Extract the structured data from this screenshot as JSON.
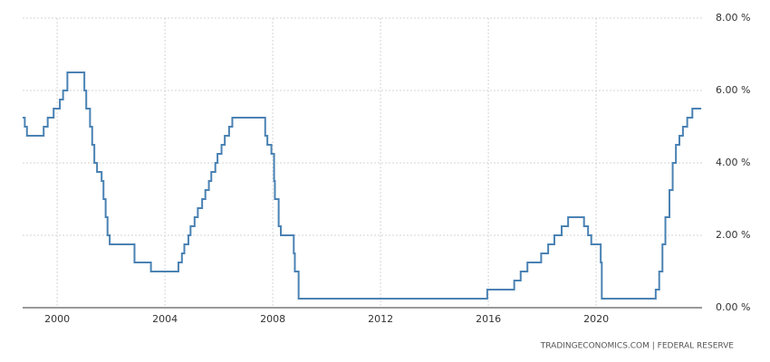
{
  "chart_data": {
    "type": "line",
    "step": true,
    "grid": true,
    "color": "#4a82b3",
    "source": "TRADINGECONOMICS.COM | FEDERAL RESERVE",
    "xlim": [
      1998.72,
      2023.93
    ],
    "xticks": [
      2000,
      2004,
      2008,
      2012,
      2016,
      2020
    ],
    "ylim": [
      0,
      8
    ],
    "yticks": [
      {
        "value": 0,
        "label": "0.00 %"
      },
      {
        "value": 2,
        "label": "2.00 %"
      },
      {
        "value": 4,
        "label": "4.00 %"
      },
      {
        "value": 6,
        "label": "6.00 %"
      },
      {
        "value": 8,
        "label": "8.00 %"
      }
    ],
    "x": [
      1998.72,
      1998.8,
      1998.88,
      1999.5,
      1999.65,
      1999.87,
      2000.1,
      2000.22,
      2000.38,
      2001.01,
      2001.08,
      2001.22,
      2001.3,
      2001.38,
      2001.48,
      2001.65,
      2001.72,
      2001.8,
      2001.87,
      2001.95,
      2002.87,
      2003.48,
      2004.5,
      2004.63,
      2004.72,
      2004.87,
      2004.95,
      2005.1,
      2005.22,
      2005.38,
      2005.5,
      2005.63,
      2005.72,
      2005.87,
      2005.95,
      2006.1,
      2006.22,
      2006.38,
      2006.5,
      2007.72,
      2007.8,
      2007.95,
      2008.05,
      2008.08,
      2008.22,
      2008.3,
      2008.78,
      2008.82,
      2008.96,
      2015.96,
      2016.96,
      2017.2,
      2017.45,
      2017.96,
      2018.22,
      2018.45,
      2018.72,
      2018.96,
      2019.55,
      2019.7,
      2019.82,
      2020.17,
      2020.21,
      2022.21,
      2022.34,
      2022.46,
      2022.57,
      2022.72,
      2022.84,
      2022.96,
      2023.09,
      2023.22,
      2023.38,
      2023.57,
      2023.9
    ],
    "values": [
      5.25,
      5.0,
      4.75,
      5.0,
      5.25,
      5.5,
      5.75,
      6.0,
      6.5,
      6.0,
      5.5,
      5.0,
      4.5,
      4.0,
      3.75,
      3.5,
      3.0,
      2.5,
      2.0,
      1.75,
      1.25,
      1.0,
      1.25,
      1.5,
      1.75,
      2.0,
      2.25,
      2.5,
      2.75,
      3.0,
      3.25,
      3.5,
      3.75,
      4.0,
      4.25,
      4.5,
      4.75,
      5.0,
      5.25,
      4.75,
      4.5,
      4.25,
      3.5,
      3.0,
      2.25,
      2.0,
      1.5,
      1.0,
      0.25,
      0.5,
      0.75,
      1.0,
      1.25,
      1.5,
      1.75,
      2.0,
      2.25,
      2.5,
      2.25,
      2.0,
      1.75,
      1.25,
      0.25,
      0.5,
      1.0,
      1.75,
      2.5,
      3.25,
      4.0,
      4.5,
      4.75,
      5.0,
      5.25,
      5.5,
      5.5
    ]
  }
}
